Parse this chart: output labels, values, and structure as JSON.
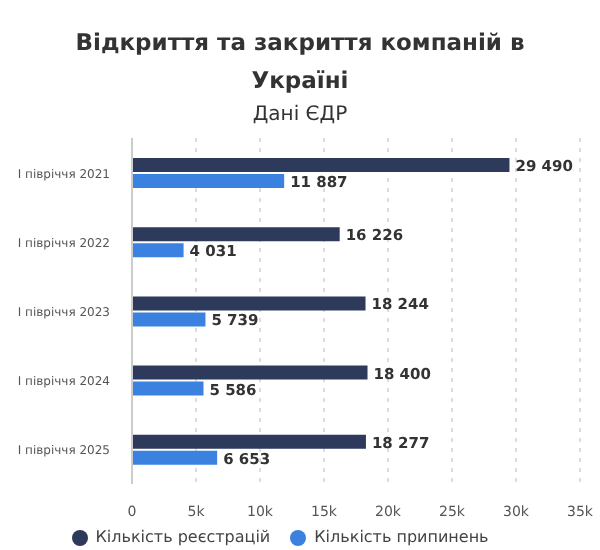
{
  "chart_data": {
    "type": "bar",
    "orientation": "horizontal",
    "title": "Відкриття та закриття компаній в Україні",
    "subtitle": "Дані ЄДР",
    "categories": [
      "I півріччя 2021",
      "I півріччя 2022",
      "I півріччя 2023",
      "I півріччя 2024",
      "I півріччя 2025"
    ],
    "series": [
      {
        "name": "Кількість реєстрацій",
        "color": "#2d3a5c",
        "values": [
          29490,
          16226,
          18244,
          18400,
          18277
        ],
        "value_labels": [
          "29 490",
          "16 226",
          "18 244",
          "18 400",
          "18 277"
        ]
      },
      {
        "name": "Кількість припинень",
        "color": "#3b82e0",
        "values": [
          11887,
          4031,
          5739,
          5586,
          6653
        ],
        "value_labels": [
          "11 887",
          "4 031",
          "5 739",
          "5 586",
          "6 653"
        ]
      }
    ],
    "xlim": [
      0,
      35000
    ],
    "xticks": [
      0,
      {
        "value": 5000,
        "label": "5k"
      },
      {
        "value": 10000,
        "label": "10k"
      },
      {
        "value": 15000,
        "label": "15k"
      },
      {
        "value": 20000,
        "label": "20k"
      },
      {
        "value": 25000,
        "label": "25k"
      },
      {
        "value": 30000,
        "label": "30k"
      },
      {
        "value": 35000,
        "label": "35k"
      }
    ],
    "grid": "x",
    "legend": "bottom"
  }
}
